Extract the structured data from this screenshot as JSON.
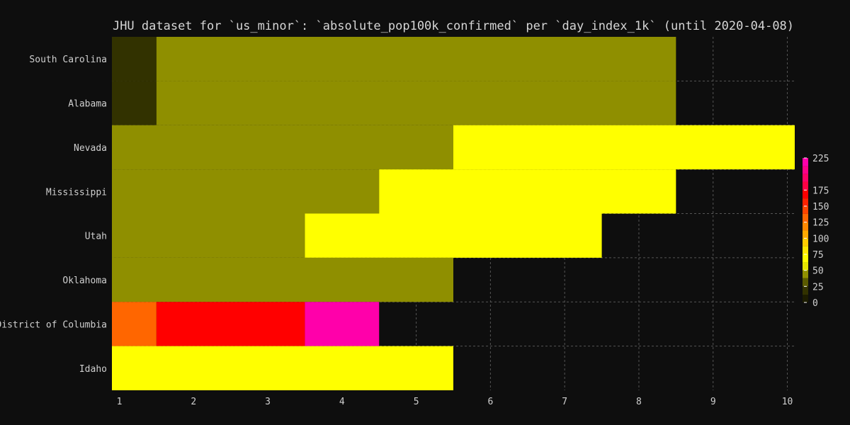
{
  "chart_data": {
    "type": "heatmap",
    "title": "JHU dataset for `us_minor`: `absolute_pop100k_confirmed` per `day_index_1k` (until 2020-04-08)",
    "xlabel": "",
    "ylabel": "",
    "x_ticks": [
      1,
      2,
      3,
      4,
      5,
      6,
      7,
      8,
      9,
      10
    ],
    "x_tick_labels": [
      "1",
      "2",
      "3",
      "4",
      "5",
      "6",
      "7",
      "8",
      "9",
      "10"
    ],
    "xlim": [
      0.9,
      10.1
    ],
    "grid": true,
    "rows": [
      {
        "label": "South Carolina",
        "cells": [
          {
            "x0": 0.9,
            "x1": 1.5,
            "value": 20
          },
          {
            "x0": 1.5,
            "x1": 8.5,
            "value": 40
          }
        ]
      },
      {
        "label": "Alabama",
        "cells": [
          {
            "x0": 0.9,
            "x1": 1.5,
            "value": 20
          },
          {
            "x0": 1.5,
            "x1": 8.5,
            "value": 40
          }
        ]
      },
      {
        "label": "Nevada",
        "cells": [
          {
            "x0": 0.9,
            "x1": 5.5,
            "value": 40
          },
          {
            "x0": 5.5,
            "x1": 10.1,
            "value": 62
          }
        ]
      },
      {
        "label": "Mississippi",
        "cells": [
          {
            "x0": 0.9,
            "x1": 4.5,
            "value": 40
          },
          {
            "x0": 4.5,
            "x1": 8.5,
            "value": 62
          }
        ]
      },
      {
        "label": "Utah",
        "cells": [
          {
            "x0": 0.9,
            "x1": 3.5,
            "value": 40
          },
          {
            "x0": 3.5,
            "x1": 7.5,
            "value": 62
          }
        ]
      },
      {
        "label": "Oklahoma",
        "cells": [
          {
            "x0": 0.9,
            "x1": 5.5,
            "value": 40
          }
        ]
      },
      {
        "label": "District of Columbia",
        "cells": [
          {
            "x0": 0.9,
            "x1": 1.5,
            "value": 135
          },
          {
            "x0": 1.5,
            "x1": 3.5,
            "value": 165
          },
          {
            "x0": 3.5,
            "x1": 4.5,
            "value": 215
          }
        ]
      },
      {
        "label": "Idaho",
        "cells": [
          {
            "x0": 0.9,
            "x1": 5.5,
            "value": 62
          }
        ]
      }
    ],
    "colorbar": {
      "ticks": [
        0,
        25,
        50,
        75,
        100,
        125,
        150,
        175,
        225
      ],
      "range": [
        0,
        225
      ],
      "bands": [
        {
          "from": 0,
          "to": 12,
          "color": "#1c1c00"
        },
        {
          "from": 12,
          "to": 25,
          "color": "#323200"
        },
        {
          "from": 25,
          "to": 38,
          "color": "#5a5a00"
        },
        {
          "from": 38,
          "to": 50,
          "color": "#8f8f00"
        },
        {
          "from": 50,
          "to": 62,
          "color": "#e6e600"
        },
        {
          "from": 62,
          "to": 75,
          "color": "#ffff00"
        },
        {
          "from": 75,
          "to": 88,
          "color": "#ffe800"
        },
        {
          "from": 88,
          "to": 100,
          "color": "#ffcc00"
        },
        {
          "from": 100,
          "to": 112,
          "color": "#ffaa00"
        },
        {
          "from": 112,
          "to": 125,
          "color": "#ff8800"
        },
        {
          "from": 125,
          "to": 138,
          "color": "#ff6600"
        },
        {
          "from": 138,
          "to": 150,
          "color": "#ff4400"
        },
        {
          "from": 150,
          "to": 162,
          "color": "#ff2200"
        },
        {
          "from": 162,
          "to": 175,
          "color": "#ff0000"
        },
        {
          "from": 175,
          "to": 188,
          "color": "#ff0044"
        },
        {
          "from": 188,
          "to": 200,
          "color": "#ff0066"
        },
        {
          "from": 200,
          "to": 212,
          "color": "#ff0088"
        },
        {
          "from": 212,
          "to": 225,
          "color": "#ff00aa"
        }
      ]
    }
  }
}
